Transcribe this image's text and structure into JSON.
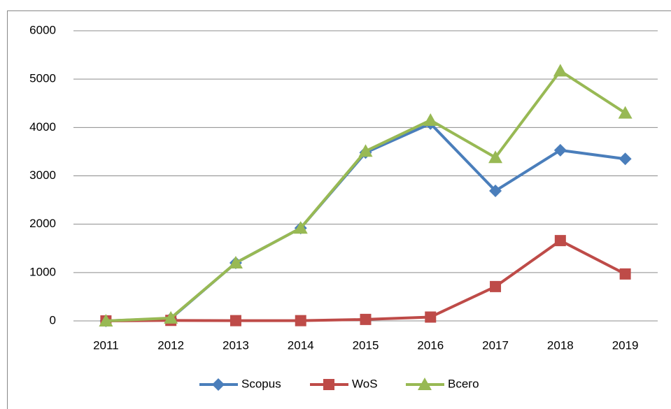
{
  "chart_data": {
    "type": "line",
    "categories": [
      "2011",
      "2012",
      "2013",
      "2014",
      "2015",
      "2016",
      "2017",
      "2018",
      "2019"
    ],
    "series": [
      {
        "name": "Scopus",
        "color": "#4a7ebb",
        "marker": "diamond",
        "values": [
          0,
          50,
          1200,
          1920,
          3480,
          4080,
          2690,
          3530,
          3350
        ]
      },
      {
        "name": "WoS",
        "color": "#be4b48",
        "marker": "square",
        "values": [
          0,
          10,
          5,
          5,
          30,
          80,
          710,
          1660,
          970
        ]
      },
      {
        "name": "Всего",
        "color": "#98b954",
        "marker": "triangle",
        "values": [
          0,
          60,
          1200,
          1920,
          3510,
          4150,
          3380,
          5170,
          4300
        ]
      }
    ],
    "ylim": [
      0,
      6000
    ],
    "yticks": [
      0,
      1000,
      2000,
      3000,
      4000,
      5000,
      6000
    ],
    "grid": true,
    "legend": "bottom"
  }
}
